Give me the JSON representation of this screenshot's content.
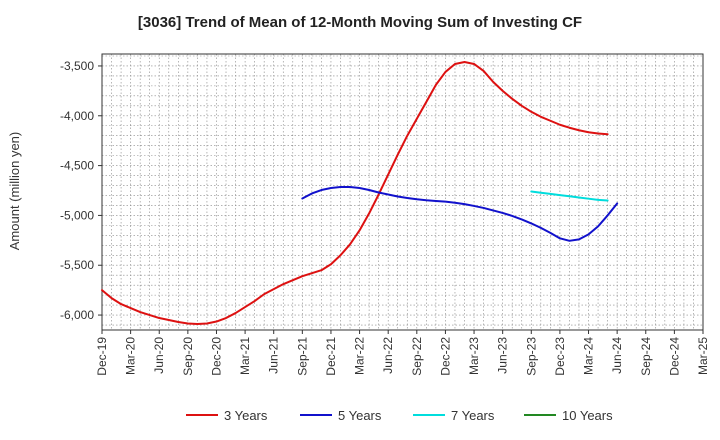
{
  "chart_data": {
    "type": "line",
    "title": "[3036]  Trend of Mean of 12-Month Moving Sum of Investing CF",
    "xlabel": "",
    "ylabel": "Amount (million yen)",
    "ylim": [
      -6150,
      -3380
    ],
    "yticks": [
      -3500,
      -4000,
      -4500,
      -5000,
      -5500,
      -6000
    ],
    "ytick_labels": [
      "-3,500",
      "-4,000",
      "-4,500",
      "-5,000",
      "-5,500",
      "-6,000"
    ],
    "x_range": [
      "Dec-19",
      "Mar-25"
    ],
    "xtick_labels": [
      "Dec-19",
      "Mar-20",
      "Jun-20",
      "Sep-20",
      "Dec-20",
      "Mar-21",
      "Jun-21",
      "Sep-21",
      "Dec-21",
      "Mar-22",
      "Jun-22",
      "Sep-22",
      "Dec-22",
      "Mar-23",
      "Jun-23",
      "Sep-23",
      "Dec-23",
      "Mar-24",
      "Jun-24",
      "Sep-24",
      "Dec-24",
      "Mar-25"
    ],
    "grid": true,
    "legend_position": "bottom",
    "series": [
      {
        "name": "3 Years",
        "color": "#dd1111",
        "start_month_index": 0,
        "values": [
          -5750,
          -5830,
          -5890,
          -5930,
          -5970,
          -6000,
          -6030,
          -6050,
          -6070,
          -6085,
          -6090,
          -6085,
          -6065,
          -6030,
          -5980,
          -5920,
          -5860,
          -5790,
          -5740,
          -5690,
          -5650,
          -5610,
          -5580,
          -5550,
          -5490,
          -5400,
          -5290,
          -5150,
          -4980,
          -4790,
          -4590,
          -4390,
          -4200,
          -4030,
          -3860,
          -3690,
          -3560,
          -3480,
          -3460,
          -3480,
          -3550,
          -3660,
          -3750,
          -3830,
          -3900,
          -3960,
          -4010,
          -4050,
          -4090,
          -4120,
          -4145,
          -4165,
          -4178,
          -4185
        ]
      },
      {
        "name": "5 Years",
        "color": "#1111cc",
        "start_month_index": 21,
        "values": [
          -4830,
          -4780,
          -4745,
          -4725,
          -4715,
          -4715,
          -4725,
          -4745,
          -4770,
          -4790,
          -4810,
          -4825,
          -4838,
          -4848,
          -4855,
          -4862,
          -4873,
          -4887,
          -4905,
          -4925,
          -4950,
          -4975,
          -5005,
          -5040,
          -5080,
          -5125,
          -5175,
          -5230,
          -5255,
          -5240,
          -5190,
          -5110,
          -5000,
          -4880
        ]
      },
      {
        "name": "7 Years",
        "color": "#00dddd",
        "start_month_index": 45,
        "values": [
          -4760,
          -4772,
          -4784,
          -4796,
          -4808,
          -4820,
          -4832,
          -4844,
          -4850
        ]
      },
      {
        "name": "10 Years",
        "color": "#228822",
        "start_month_index": 0,
        "values": []
      }
    ]
  }
}
